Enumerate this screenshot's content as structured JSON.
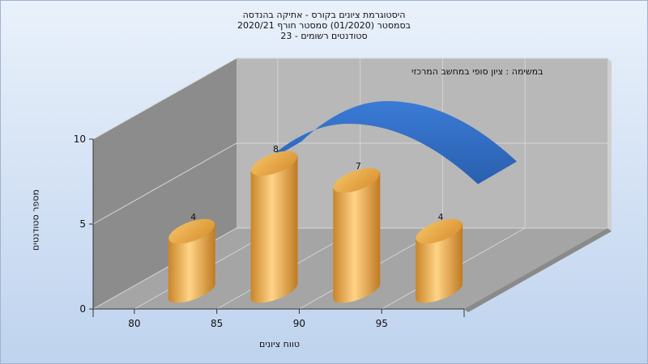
{
  "chart_data": {
    "type": "bar",
    "title_lines": [
      "היסטוגרמת ציונים בקורס - אתיקה בהנדסה",
      "בסמסטר  (01/2020)  סמסטר חורף  2020/21",
      "סטודנטים רשומים - 23"
    ],
    "xlabel": "טווח ציונים",
    "ylabel": "מספר סטודנטים",
    "x_ticks": [
      "80",
      "85",
      "90",
      "95"
    ],
    "y_ticks": [
      "0",
      "5",
      "10"
    ],
    "ylim": [
      0,
      10
    ],
    "bars": [
      {
        "x": 82.5,
        "value": 4,
        "label": "4"
      },
      {
        "x": 87.5,
        "value": 8,
        "label": "8"
      },
      {
        "x": 92.5,
        "value": 7,
        "label": "7"
      },
      {
        "x": 97.5,
        "value": 4,
        "label": "4"
      }
    ],
    "curve_legend": "במשימה : ציון סופי במחשב המרכזי",
    "grid": true,
    "colors": {
      "bar": "#e8a94a",
      "curve": "#2f6bbf",
      "back_wall": "#b9b9b9",
      "side_wall": "#8f8f8f",
      "floor": "#a6a6a6"
    }
  }
}
